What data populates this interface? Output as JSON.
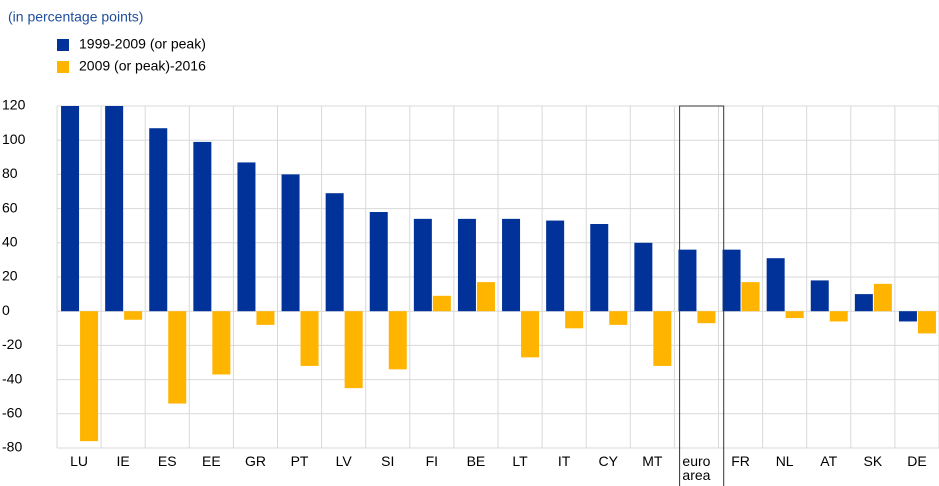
{
  "chart_data": {
    "type": "bar",
    "subtitle": "(in percentage points)",
    "categories": [
      "LU",
      "IE",
      "ES",
      "EE",
      "GR",
      "PT",
      "LV",
      "SI",
      "FI",
      "BE",
      "LT",
      "IT",
      "CY",
      "MT",
      "euro area",
      "FR",
      "NL",
      "AT",
      "SK",
      "DE"
    ],
    "series": [
      {
        "name": "1999-2009 (or peak)",
        "color": "#003299",
        "values": [
          120,
          120,
          107,
          99,
          87,
          80,
          69,
          58,
          54,
          54,
          54,
          53,
          51,
          40,
          36,
          36,
          31,
          18,
          10,
          -6
        ]
      },
      {
        "name": "2009 (or peak)-2016",
        "color": "#ffb400",
        "values": [
          -76,
          -5,
          -54,
          -37,
          -8,
          -32,
          -45,
          -34,
          9,
          17,
          -27,
          -10,
          -8,
          -32,
          -7,
          17,
          -4,
          -6,
          16,
          -13
        ]
      }
    ],
    "ylim": [
      -80,
      120
    ],
    "yticks": [
      -80,
      -60,
      -40,
      -20,
      0,
      20,
      40,
      60,
      80,
      100,
      120
    ],
    "grid": true
  }
}
